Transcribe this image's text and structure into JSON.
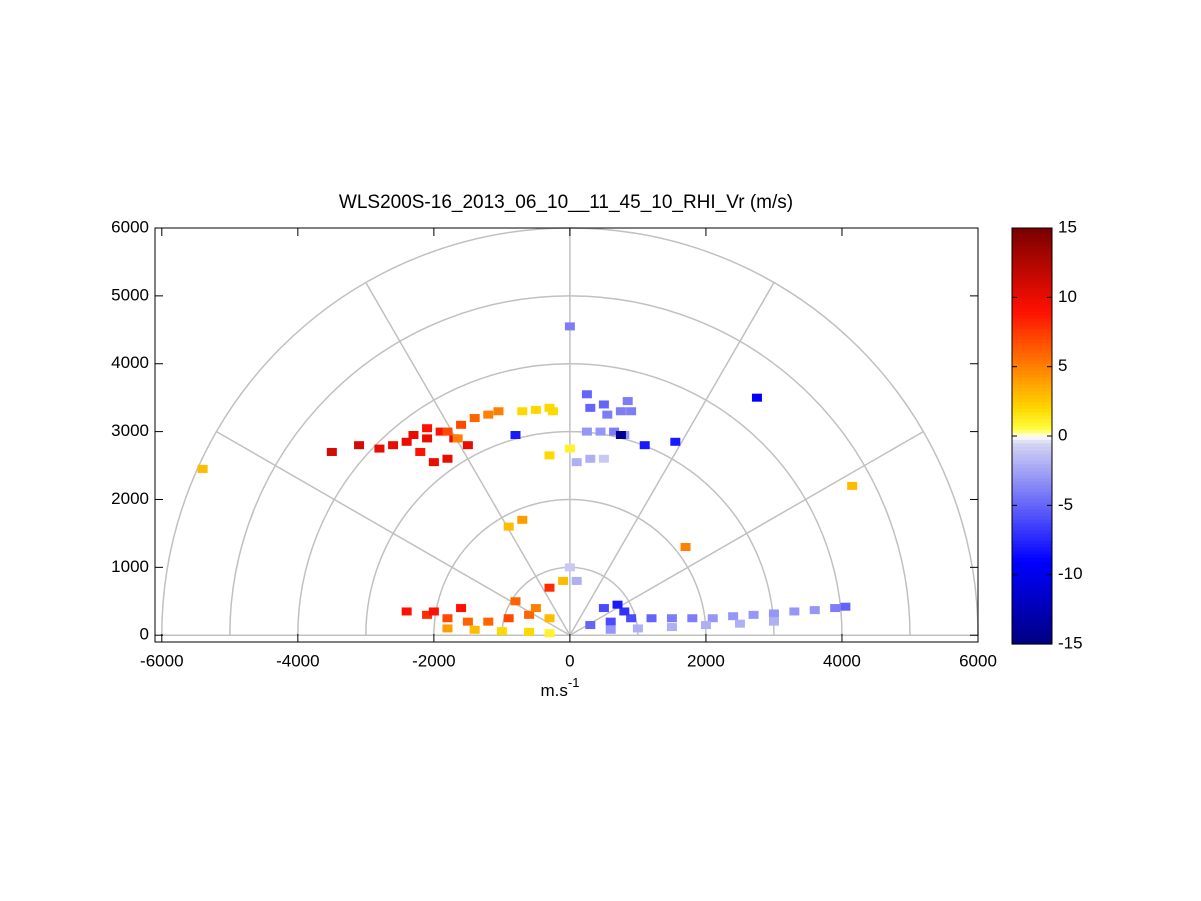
{
  "chart_data": {
    "type": "polar_rhi",
    "title": "WLS200S-16_2013_06_10__11_45_10_RHI_Vr (m/s)",
    "xlabel": "m.s",
    "xlabel_sup": "-1",
    "xlim": [
      -6100,
      6000
    ],
    "ylim": [
      -100,
      6000
    ],
    "xticks": [
      -6000,
      -4000,
      -2000,
      0,
      2000,
      4000,
      6000
    ],
    "yticks": [
      0,
      1000,
      2000,
      3000,
      4000,
      5000,
      6000
    ],
    "polar_grid": {
      "rings": [
        1000,
        2000,
        3000,
        4000,
        5000,
        6000
      ],
      "spoke_step_deg": 30,
      "color": "#c0c0c0"
    },
    "clim": [
      -15,
      15
    ],
    "cticks": [
      -15,
      -10,
      -5,
      0,
      5,
      10,
      15
    ],
    "colormap": [
      [
        -15,
        "#000080"
      ],
      [
        -9,
        "#0000ff"
      ],
      [
        -0.5,
        "#d4d4f2"
      ],
      [
        0,
        "#ffffff"
      ],
      [
        0.5,
        "#ffff40"
      ],
      [
        2,
        "#ffd800"
      ],
      [
        5,
        "#ff8000"
      ],
      [
        9,
        "#ff1000"
      ],
      [
        15,
        "#7a0000"
      ]
    ],
    "x": [
      300,
      600,
      900,
      1200,
      1500,
      1800,
      2100,
      2400,
      2700,
      3000,
      3300,
      3600,
      3900,
      4050,
      600,
      1000,
      1500,
      2000,
      2500,
      3000,
      800,
      500,
      700,
      -2400,
      -2100,
      -1800,
      -1500,
      -1200,
      -900,
      -600,
      -300,
      -1800,
      -1400,
      -1000,
      -600,
      -300,
      -2000,
      -1600,
      -800,
      -500,
      -3500,
      -3100,
      -2800,
      -2600,
      -2400,
      -2300,
      -2100,
      -1900,
      -1700,
      -1500,
      -2200,
      -2000,
      -1800,
      -2100,
      -1600,
      -1400,
      -1200,
      -1050,
      -1800,
      -1650,
      -700,
      -500,
      -300,
      -250,
      -300,
      0,
      100,
      300,
      500,
      250,
      450,
      650,
      800,
      550,
      750,
      850,
      900,
      300,
      500,
      250,
      750,
      1100,
      1550,
      -800,
      2750,
      -5400,
      4150,
      1700,
      -700,
      -900,
      0,
      0,
      100,
      -100,
      -300
    ],
    "y": [
      150,
      200,
      250,
      250,
      250,
      250,
      250,
      280,
      300,
      320,
      350,
      370,
      400,
      420,
      80,
      100,
      120,
      150,
      170,
      200,
      350,
      400,
      450,
      350,
      300,
      250,
      200,
      200,
      250,
      300,
      250,
      100,
      80,
      60,
      50,
      30,
      350,
      400,
      500,
      400,
      2700,
      2800,
      2750,
      2800,
      2850,
      2950,
      2900,
      3000,
      2900,
      2800,
      2700,
      2550,
      2600,
      3050,
      3100,
      3200,
      3250,
      3300,
      3000,
      2900,
      3300,
      3320,
      3350,
      3300,
      2650,
      4550,
      2550,
      2600,
      2600,
      3000,
      3000,
      3000,
      2950,
      3250,
      3300,
      3450,
      3300,
      3350,
      3400,
      3550,
      2950,
      2800,
      2850,
      2950,
      3500,
      2450,
      2200,
      1300,
      1700,
      1600,
      2750,
      1000,
      800,
      800,
      700
    ],
    "values": [
      -5,
      -6,
      -6,
      -5,
      -4,
      -4,
      -3,
      -3,
      -3,
      -3,
      -3,
      -3,
      -4,
      -5,
      -3,
      -2,
      -2,
      -2,
      -2,
      -2,
      -7,
      -6,
      -8,
      9,
      8,
      7,
      6,
      6,
      7,
      6,
      3,
      4,
      3,
      2,
      2,
      1,
      9,
      9,
      6,
      5,
      11,
      11,
      10,
      10,
      10,
      10,
      10,
      9,
      10,
      10,
      9,
      10,
      10,
      9,
      7,
      6,
      5,
      5,
      7,
      5,
      2,
      2,
      2,
      2,
      2,
      -4,
      -2,
      -2,
      -1,
      -3,
      -3,
      -4,
      -3,
      -4,
      -4,
      -4,
      -4,
      -5,
      -5,
      -5,
      -14,
      -8,
      -8,
      -8,
      -9,
      3,
      3,
      5,
      4,
      3,
      1,
      -1,
      -2,
      3,
      8
    ]
  }
}
